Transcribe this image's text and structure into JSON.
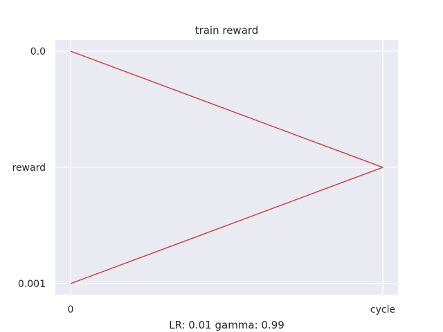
{
  "chart_data": {
    "type": "line",
    "title": "train reward",
    "xlabel": "LR: 0.01 gamma: 0.99",
    "ylabel": "",
    "x_categories": [
      "0",
      "cycle"
    ],
    "y_categories": [
      "0.0",
      "reward",
      "0.001"
    ],
    "series": [
      {
        "color": "#c44e52",
        "x": [
          "0",
          "cycle",
          "0"
        ],
        "y": [
          "0.0",
          "reward",
          "0.001"
        ]
      }
    ],
    "grid": true,
    "legend": "none"
  }
}
